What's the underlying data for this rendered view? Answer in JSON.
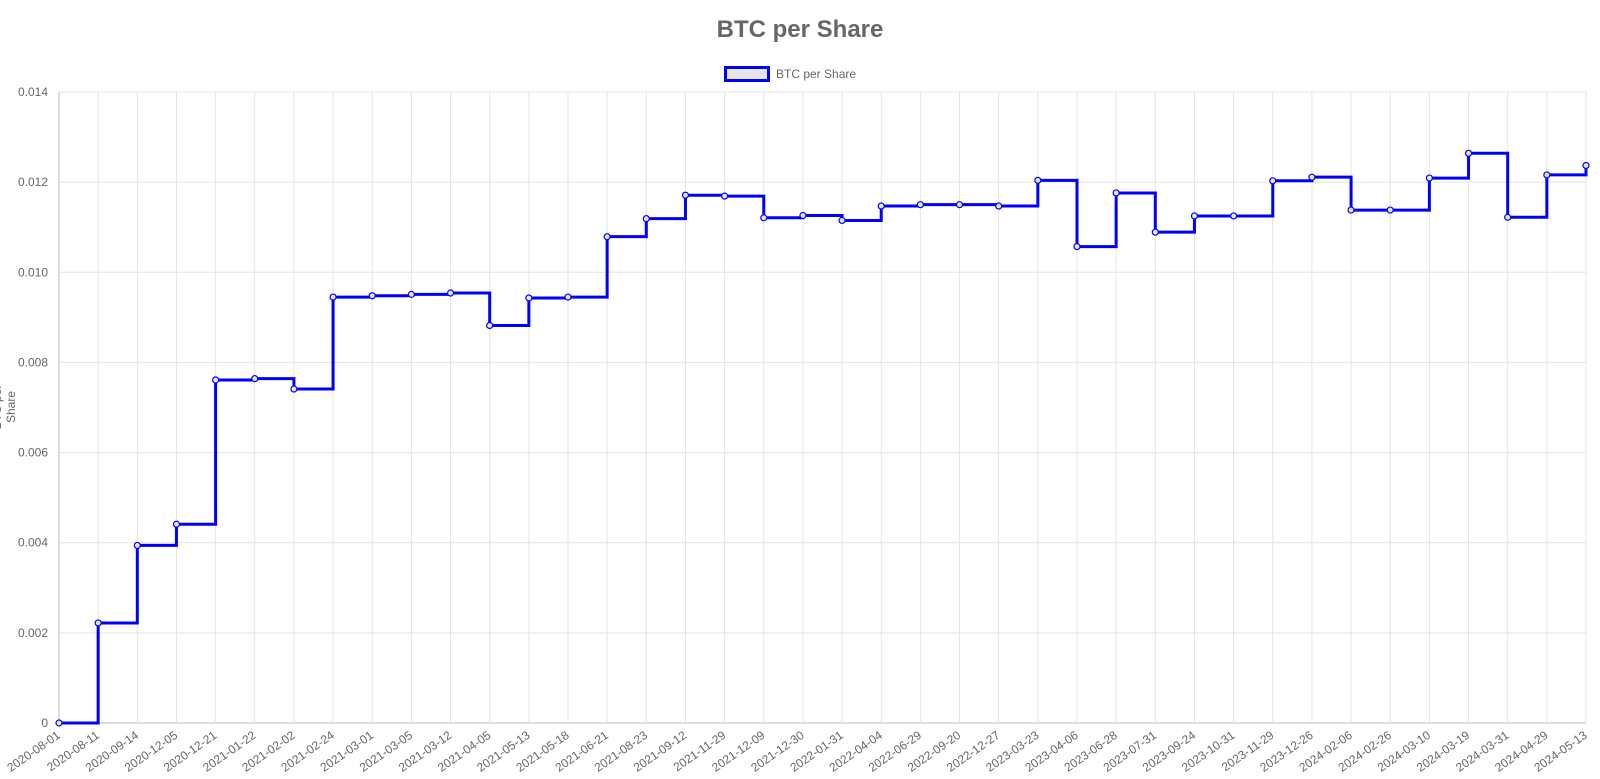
{
  "chart_data": {
    "type": "line",
    "title": "BTC per Share",
    "ylabel": "BTC per Share",
    "xlabel": "",
    "ylim": [
      0,
      0.014
    ],
    "y_ticks": [
      "0",
      "0.002",
      "0.004",
      "0.006",
      "0.008",
      "0.010",
      "0.012",
      "0.014"
    ],
    "grid": true,
    "legend_position": "top-center",
    "step_line": true,
    "x": [
      "2020-08-01",
      "2020-08-11",
      "2020-09-14",
      "2020-12-05",
      "2020-12-21",
      "2021-01-22",
      "2021-02-02",
      "2021-02-24",
      "2021-03-01",
      "2021-03-05",
      "2021-03-12",
      "2021-04-05",
      "2021-05-13",
      "2021-05-18",
      "2021-06-21",
      "2021-08-23",
      "2021-09-12",
      "2021-11-29",
      "2021-12-09",
      "2021-12-30",
      "2022-01-31",
      "2022-04-04",
      "2022-06-29",
      "2022-09-20",
      "2022-12-27",
      "2023-03-23",
      "2023-04-06",
      "2023-06-28",
      "2023-07-31",
      "2023-09-24",
      "2023-10-31",
      "2023-11-29",
      "2023-12-26",
      "2024-02-06",
      "2024-02-26",
      "2024-03-10",
      "2024-03-19",
      "2024-03-31",
      "2024-04-29",
      "2024-05-13"
    ],
    "series": [
      {
        "name": "BTC per Share",
        "color": "#0000ff",
        "values": [
          0.0,
          0.00222,
          0.00394,
          0.00441,
          0.00761,
          0.00764,
          0.00741,
          0.00945,
          0.00948,
          0.00951,
          0.00954,
          0.00882,
          0.00943,
          0.00945,
          0.01079,
          0.01119,
          0.01171,
          0.01169,
          0.01121,
          0.01126,
          0.01115,
          0.01147,
          0.0115,
          0.0115,
          0.01147,
          0.01204,
          0.01057,
          0.01176,
          0.01089,
          0.01125,
          0.01125,
          0.01203,
          0.01211,
          0.01138,
          0.01138,
          0.01209,
          0.01264,
          0.01122,
          0.01216,
          0.01237
        ]
      }
    ]
  }
}
